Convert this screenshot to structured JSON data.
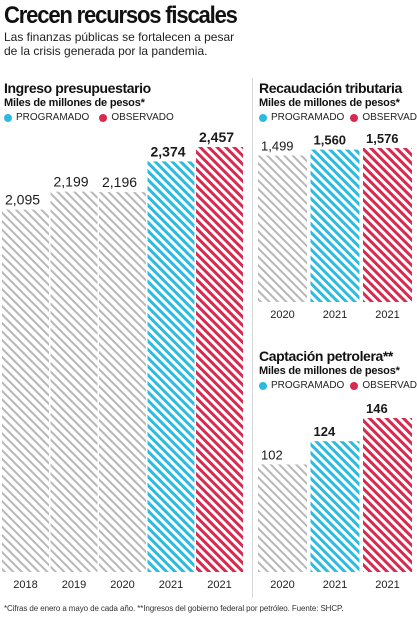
{
  "header": {
    "title": "Crecen recursos fiscales",
    "subtitle": "Las finanzas públicas se fortalecen a pesar de la crisis generada por la pandemia."
  },
  "legend": {
    "programado": "PROGRAMADO",
    "observado": "OBSERVADO"
  },
  "colors": {
    "history": "#b7b7b7",
    "programado": "#2bbbe0",
    "observado": "#d8294e"
  },
  "footnote": "*Cifras de enero a mayo de cada año. **Ingresos del gobierno federal por petróleo. Fuente: SHCP.",
  "chart_data": [
    {
      "id": "ingreso",
      "type": "bar",
      "title": "Ingreso presupuestario",
      "ylabel": "Miles de millones de pesos*",
      "categories": [
        "2018",
        "2019",
        "2020",
        "2021",
        "2021"
      ],
      "values": [
        2095,
        2199,
        2196,
        2374,
        2457
      ],
      "labels": [
        "2,095",
        "2,199",
        "2,196",
        "2,374",
        "2,457"
      ],
      "kinds": [
        "history",
        "history",
        "history",
        "programado",
        "observado"
      ],
      "ylim": [
        0,
        2600
      ]
    },
    {
      "id": "tributaria",
      "type": "bar",
      "title": "Recaudación tributaria",
      "ylabel": "Miles de millones de pesos*",
      "categories": [
        "2020",
        "2021",
        "2021"
      ],
      "values": [
        1499,
        1560,
        1576
      ],
      "labels": [
        "1,499",
        "1,560",
        "1,576"
      ],
      "kinds": [
        "history",
        "programado",
        "observado"
      ],
      "ylim": [
        0,
        1800
      ]
    },
    {
      "id": "petrolera",
      "type": "bar",
      "title": "Captación petrolera**",
      "ylabel": "Miles de millones de pesos*",
      "categories": [
        "2020",
        "2021",
        "2021"
      ],
      "values": [
        102,
        124,
        146
      ],
      "labels": [
        "102",
        "124",
        "146"
      ],
      "kinds": [
        "history",
        "programado",
        "observado"
      ],
      "ylim": [
        0,
        180
      ]
    }
  ]
}
